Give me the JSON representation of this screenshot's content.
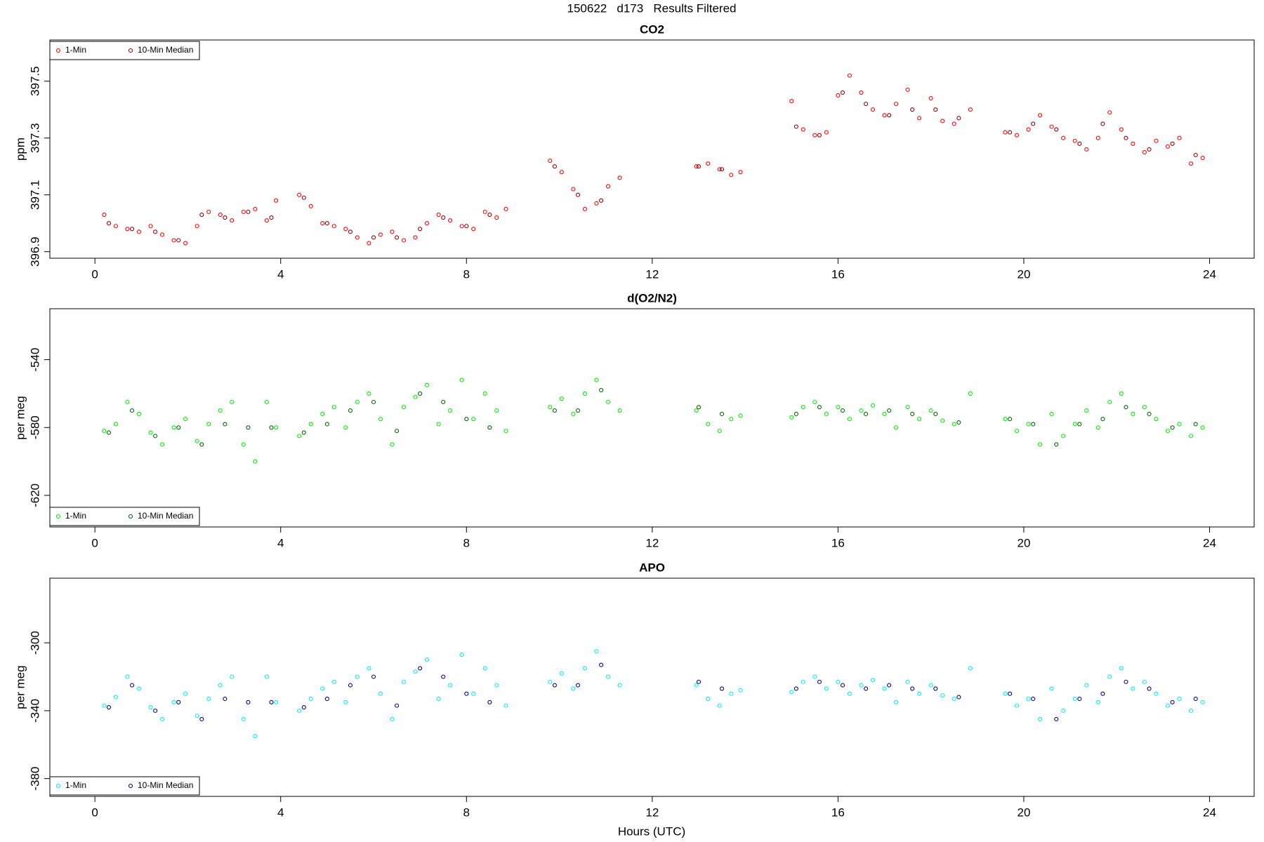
{
  "title": "150622   d173   Results Filtered",
  "x_label": "Hours (UTC)",
  "chart_data": [
    {
      "type": "scatter",
      "title": "CO2",
      "y_label": "ppm",
      "legend": "topleft",
      "xlim": [
        -0.97,
        24.96
      ],
      "xticks": [
        0,
        4,
        8,
        12,
        16,
        20,
        24
      ],
      "ylim": [
        396.877,
        397.645
      ],
      "yticks": [
        396.9,
        397.1,
        397.3,
        397.5
      ],
      "series": [
        {
          "name": "1-Min",
          "color": "#ff0000",
          "x": [
            0.2,
            0.45,
            0.7,
            0.95,
            1.2,
            1.45,
            1.7,
            1.95,
            2.2,
            2.45,
            2.7,
            2.95,
            3.2,
            3.45,
            3.7,
            3.9,
            4.4,
            4.65,
            4.9,
            5.15,
            5.4,
            5.65,
            5.9,
            6.15,
            6.4,
            6.65,
            6.9,
            7.15,
            7.4,
            7.65,
            7.9,
            8.15,
            8.4,
            8.65,
            8.85,
            9.8,
            10.05,
            10.3,
            10.55,
            10.8,
            11.05,
            11.3,
            12.95,
            13.2,
            13.45,
            13.7,
            13.9,
            15.0,
            15.25,
            15.5,
            15.75,
            16.0,
            16.25,
            16.5,
            16.75,
            17.0,
            17.25,
            17.5,
            17.75,
            18.0,
            18.25,
            18.5,
            18.85,
            19.6,
            19.85,
            20.1,
            20.35,
            20.6,
            20.85,
            21.1,
            21.35,
            21.6,
            21.85,
            22.1,
            22.35,
            22.6,
            22.85,
            23.1,
            23.35,
            23.6,
            23.85
          ],
          "values": [
            397.03,
            396.99,
            396.98,
            396.97,
            396.99,
            396.96,
            396.94,
            396.93,
            396.99,
            397.04,
            397.03,
            397.01,
            397.04,
            397.05,
            397.01,
            397.08,
            397.1,
            397.06,
            397.0,
            396.99,
            396.98,
            396.95,
            396.93,
            396.96,
            396.97,
            396.94,
            396.95,
            397.0,
            397.03,
            397.01,
            396.99,
            396.98,
            397.04,
            397.02,
            397.05,
            397.22,
            397.18,
            397.12,
            397.05,
            397.07,
            397.13,
            397.16,
            397.2,
            397.21,
            397.19,
            397.17,
            397.18,
            397.43,
            397.33,
            397.31,
            397.32,
            397.45,
            397.52,
            397.46,
            397.4,
            397.38,
            397.42,
            397.47,
            397.37,
            397.44,
            397.36,
            397.35,
            397.4,
            397.32,
            397.31,
            397.33,
            397.38,
            397.34,
            397.3,
            397.29,
            397.26,
            397.3,
            397.39,
            397.33,
            397.28,
            397.25,
            397.29,
            397.27,
            397.3,
            397.21,
            397.23
          ]
        },
        {
          "name": "10-Min Median",
          "color": "#8b0000",
          "x": [
            0.3,
            0.8,
            1.3,
            1.8,
            2.3,
            2.8,
            3.3,
            3.8,
            4.5,
            5.0,
            5.5,
            6.0,
            6.5,
            7.0,
            7.5,
            8.0,
            8.5,
            9.9,
            10.4,
            10.9,
            13.0,
            13.5,
            15.1,
            15.6,
            16.1,
            16.6,
            17.1,
            17.6,
            18.1,
            18.6,
            19.7,
            20.2,
            20.7,
            21.2,
            21.7,
            22.2,
            22.7,
            23.2,
            23.7
          ],
          "values": [
            397.0,
            396.98,
            396.97,
            396.94,
            397.03,
            397.02,
            397.04,
            397.02,
            397.09,
            397.0,
            396.97,
            396.95,
            396.95,
            396.98,
            397.02,
            396.99,
            397.03,
            397.2,
            397.1,
            397.08,
            397.2,
            397.19,
            397.34,
            397.31,
            397.46,
            397.42,
            397.38,
            397.4,
            397.4,
            397.37,
            397.32,
            397.35,
            397.33,
            397.28,
            397.35,
            397.3,
            397.26,
            397.28,
            397.24
          ]
        }
      ]
    },
    {
      "type": "scatter",
      "title": "d(O2/N2)",
      "y_label": "per meg",
      "legend": "bottomleft",
      "xlim": [
        -0.97,
        24.96
      ],
      "xticks": [
        0,
        4,
        8,
        12,
        16,
        20,
        24
      ],
      "ylim": [
        -638.6,
        -510
      ],
      "yticks": [
        -620,
        -580,
        -540
      ],
      "series": [
        {
          "name": "1-Min",
          "color": "#00ee00",
          "x": [
            0.2,
            0.45,
            0.7,
            0.95,
            1.2,
            1.45,
            1.7,
            1.95,
            2.2,
            2.45,
            2.7,
            2.95,
            3.2,
            3.45,
            3.7,
            3.9,
            4.4,
            4.65,
            4.9,
            5.15,
            5.4,
            5.65,
            5.9,
            6.15,
            6.4,
            6.65,
            6.9,
            7.15,
            7.4,
            7.65,
            7.9,
            8.15,
            8.4,
            8.65,
            8.85,
            9.8,
            10.05,
            10.3,
            10.55,
            10.8,
            11.05,
            11.3,
            12.95,
            13.2,
            13.45,
            13.7,
            13.9,
            15.0,
            15.25,
            15.5,
            15.75,
            16.0,
            16.25,
            16.5,
            16.75,
            17.0,
            17.25,
            17.5,
            17.75,
            18.0,
            18.25,
            18.5,
            18.85,
            19.6,
            19.85,
            20.1,
            20.35,
            20.6,
            20.85,
            21.1,
            21.35,
            21.6,
            21.85,
            22.1,
            22.35,
            22.6,
            22.85,
            23.1,
            23.35,
            23.6,
            23.85
          ],
          "values": [
            -582,
            -578,
            -565,
            -572,
            -583,
            -590,
            -580,
            -575,
            -588,
            -578,
            -570,
            -565,
            -590,
            -600,
            -565,
            -580,
            -585,
            -578,
            -572,
            -568,
            -580,
            -565,
            -560,
            -575,
            -590,
            -568,
            -562,
            -555,
            -578,
            -570,
            -552,
            -575,
            -560,
            -570,
            -582,
            -568,
            -563,
            -572,
            -560,
            -552,
            -565,
            -570,
            -570,
            -578,
            -582,
            -575,
            -573,
            -574,
            -568,
            -565,
            -572,
            -568,
            -575,
            -570,
            -567,
            -572,
            -580,
            -568,
            -575,
            -570,
            -576,
            -578,
            -560,
            -575,
            -582,
            -578,
            -590,
            -572,
            -585,
            -578,
            -570,
            -580,
            -565,
            -560,
            -572,
            -568,
            -575,
            -582,
            -578,
            -585,
            -580
          ]
        },
        {
          "name": "10-Min Median",
          "color": "#006400",
          "x": [
            0.3,
            0.8,
            1.3,
            1.8,
            2.3,
            2.8,
            3.3,
            3.8,
            4.5,
            5.0,
            5.5,
            6.0,
            6.5,
            7.0,
            7.5,
            8.0,
            8.5,
            9.9,
            10.4,
            10.9,
            13.0,
            13.5,
            15.1,
            15.6,
            16.1,
            16.6,
            17.1,
            17.6,
            18.1,
            18.6,
            19.7,
            20.2,
            20.7,
            21.2,
            21.7,
            22.2,
            22.7,
            23.2,
            23.7
          ],
          "values": [
            -583,
            -570,
            -585,
            -580,
            -590,
            -578,
            -580,
            -580,
            -583,
            -578,
            -570,
            -565,
            -582,
            -560,
            -565,
            -575,
            -580,
            -570,
            -570,
            -558,
            -568,
            -572,
            -572,
            -568,
            -570,
            -572,
            -570,
            -572,
            -572,
            -577,
            -575,
            -578,
            -590,
            -578,
            -575,
            -568,
            -572,
            -580,
            -578
          ]
        }
      ]
    },
    {
      "type": "scatter",
      "title": "APO",
      "y_label": "per meg",
      "legend": "bottomleft",
      "xlim": [
        -0.97,
        24.96
      ],
      "xticks": [
        0,
        4,
        8,
        12,
        16,
        20,
        24
      ],
      "ylim": [
        -390.5,
        -261.9
      ],
      "yticks": [
        -380,
        -340,
        -300
      ],
      "series": [
        {
          "name": "1-Min",
          "color": "#00eeee",
          "x": [
            0.2,
            0.45,
            0.7,
            0.95,
            1.2,
            1.45,
            1.7,
            1.95,
            2.2,
            2.45,
            2.7,
            2.95,
            3.2,
            3.45,
            3.7,
            3.9,
            4.4,
            4.65,
            4.9,
            5.15,
            5.4,
            5.65,
            5.9,
            6.15,
            6.4,
            6.65,
            6.9,
            7.15,
            7.4,
            7.65,
            7.9,
            8.15,
            8.4,
            8.65,
            8.85,
            9.8,
            10.05,
            10.3,
            10.55,
            10.8,
            11.05,
            11.3,
            12.95,
            13.2,
            13.45,
            13.7,
            13.9,
            15.0,
            15.25,
            15.5,
            15.75,
            16.0,
            16.25,
            16.5,
            16.75,
            17.0,
            17.25,
            17.5,
            17.75,
            18.0,
            18.25,
            18.5,
            18.85,
            19.6,
            19.85,
            20.1,
            20.35,
            20.6,
            20.85,
            21.1,
            21.35,
            21.6,
            21.85,
            22.1,
            22.35,
            22.6,
            22.85,
            23.1,
            23.35,
            23.6,
            23.85
          ],
          "values": [
            -337,
            -332,
            -320,
            -327,
            -338,
            -345,
            -335,
            -330,
            -343,
            -333,
            -325,
            -320,
            -345,
            -355,
            -320,
            -335,
            -340,
            -333,
            -327,
            -323,
            -335,
            -320,
            -315,
            -330,
            -345,
            -323,
            -317,
            -310,
            -333,
            -325,
            -307,
            -330,
            -315,
            -325,
            -337,
            -323,
            -318,
            -327,
            -315,
            -305,
            -320,
            -325,
            -325,
            -333,
            -337,
            -330,
            -328,
            -329,
            -323,
            -320,
            -327,
            -323,
            -330,
            -325,
            -322,
            -327,
            -335,
            -323,
            -330,
            -325,
            -331,
            -333,
            -315,
            -330,
            -337,
            -333,
            -345,
            -327,
            -340,
            -333,
            -325,
            -335,
            -320,
            -315,
            -327,
            -323,
            -330,
            -337,
            -333,
            -340,
            -335
          ]
        },
        {
          "name": "10-Min Median",
          "color": "#00008b",
          "x": [
            0.3,
            0.8,
            1.3,
            1.8,
            2.3,
            2.8,
            3.3,
            3.8,
            4.5,
            5.0,
            5.5,
            6.0,
            6.5,
            7.0,
            7.5,
            8.0,
            8.5,
            9.9,
            10.4,
            10.9,
            13.0,
            13.5,
            15.1,
            15.6,
            16.1,
            16.6,
            17.1,
            17.6,
            18.1,
            18.6,
            19.7,
            20.2,
            20.7,
            21.2,
            21.7,
            22.2,
            22.7,
            23.2,
            23.7
          ],
          "values": [
            -338,
            -325,
            -340,
            -335,
            -345,
            -333,
            -335,
            -335,
            -338,
            -333,
            -325,
            -320,
            -337,
            -315,
            -320,
            -330,
            -335,
            -325,
            -325,
            -313,
            -323,
            -327,
            -327,
            -323,
            -325,
            -327,
            -325,
            -327,
            -327,
            -332,
            -330,
            -333,
            -345,
            -333,
            -330,
            -323,
            -327,
            -335,
            -333
          ]
        }
      ]
    }
  ]
}
